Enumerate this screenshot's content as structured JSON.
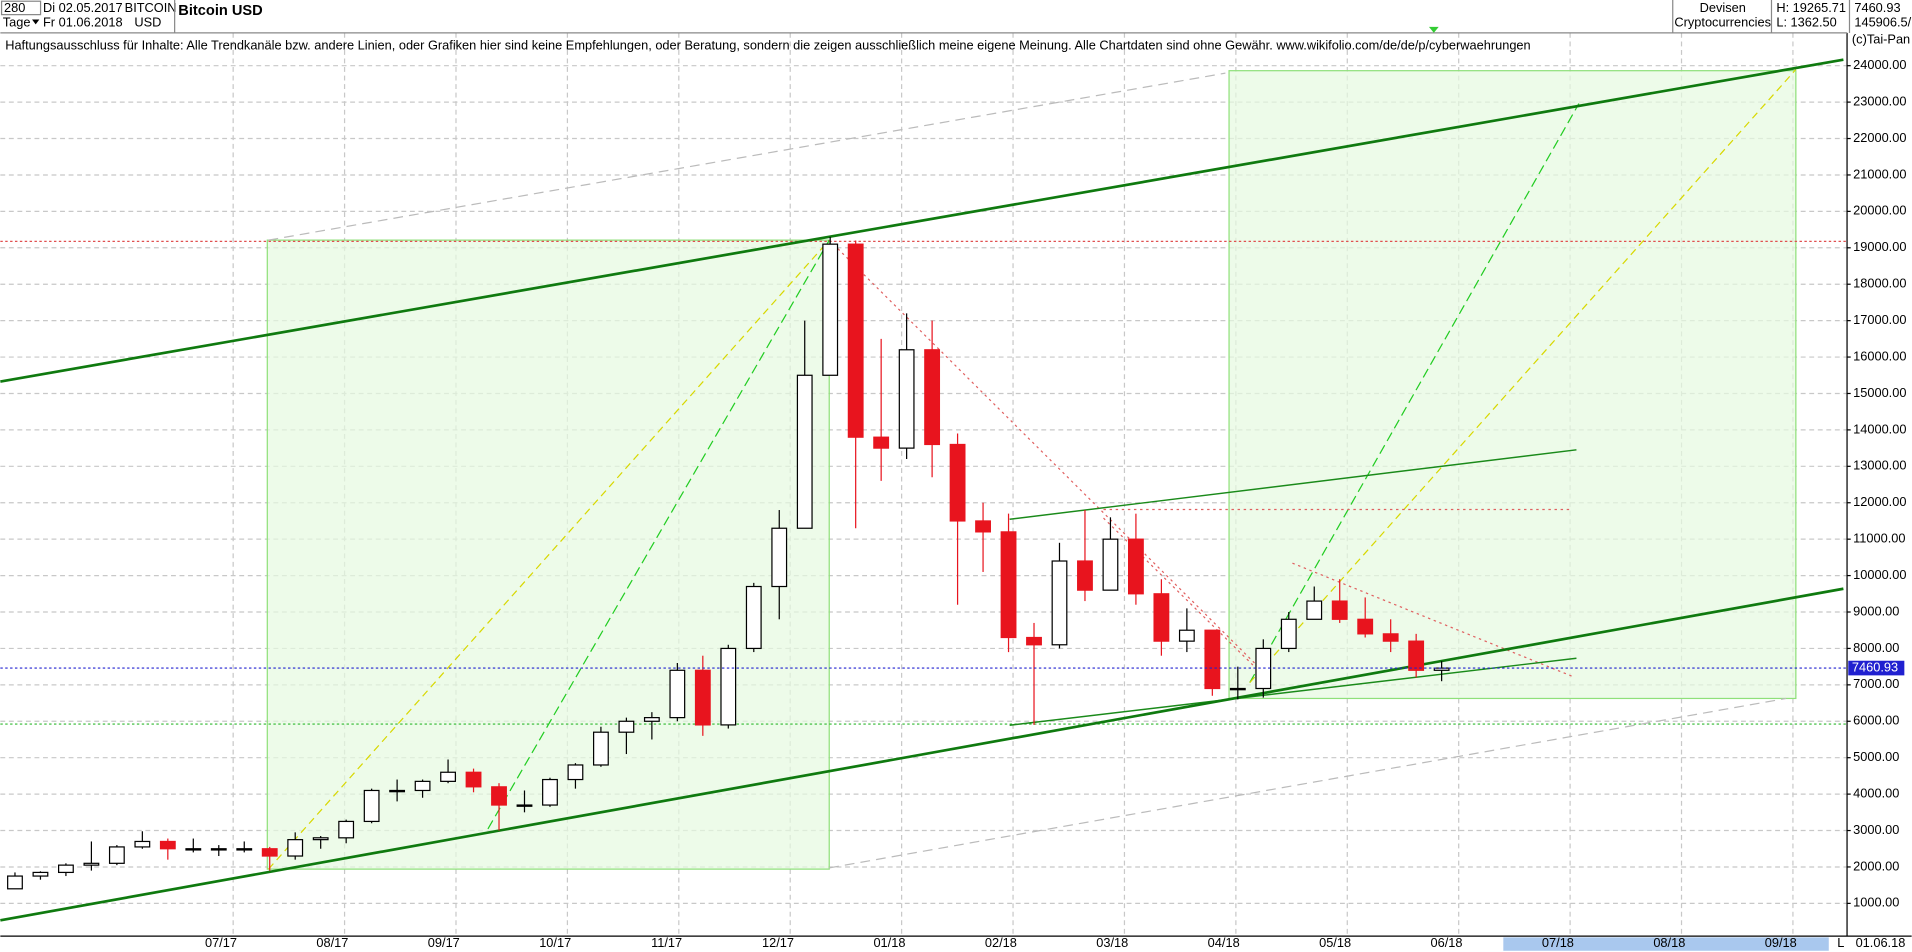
{
  "header": {
    "period": "280",
    "start": "Di 02.05.2017",
    "unit": "Tage",
    "end": "Fr 01.06.2018",
    "symbol": "BITCOIN",
    "currency": "USD",
    "name": "Bitcoin USD",
    "group": "Devisen",
    "subgroup": "Cryptocurrencies",
    "high": "H: 19265.71",
    "low": "L: 1362.50",
    "last": "7460.93",
    "volume": "145906.5/",
    "disclaimer": "Haftungsausschluss für Inhalte: Alle Trendkanäle bzw. andere Linien, oder Grafiken hier sind keine Empfehlungen, oder Beratung, sondern die zeigen ausschließlich meine eigene Meinung. Alle Chartdaten sind ohne Gewähr.  www.wikifolio.com/de/de/p/cyberwaehrungen",
    "copyright": "(c)Tai-Pan",
    "footer_date": "01.06.18",
    "footer_scale": "L"
  },
  "chart_data": {
    "type": "candlestick",
    "title": "Bitcoin USD",
    "ylim": [
      100,
      24900
    ],
    "yticks": [
      {
        "value": 1000,
        "label": "1000.00"
      },
      {
        "value": 2000,
        "label": "2000.00"
      },
      {
        "value": 3000,
        "label": "3000.00"
      },
      {
        "value": 4000,
        "label": "4000.00"
      },
      {
        "value": 5000,
        "label": "5000.00"
      },
      {
        "value": 6000,
        "label": "6000.00"
      },
      {
        "value": 7000,
        "label": "7000.00"
      },
      {
        "value": 8000,
        "label": "8000.00"
      },
      {
        "value": 9000,
        "label": "9000.00"
      },
      {
        "value": 10000,
        "label": "10000.00"
      },
      {
        "value": 11000,
        "label": "11000.00"
      },
      {
        "value": 12000,
        "label": "12000.00"
      },
      {
        "value": 13000,
        "label": "13000.00"
      },
      {
        "value": 14000,
        "label": "14000.00"
      },
      {
        "value": 15000,
        "label": "15000.00"
      },
      {
        "value": 16000,
        "label": "16000.00"
      },
      {
        "value": 17000,
        "label": "17000.00"
      },
      {
        "value": 18000,
        "label": "18000.00"
      },
      {
        "value": 19000,
        "label": "19000.00"
      },
      {
        "value": 20000,
        "label": "20000.00"
      },
      {
        "value": 21000,
        "label": "21000.00"
      },
      {
        "value": 22000,
        "label": "22000.00"
      },
      {
        "value": 23000,
        "label": "23000.00"
      },
      {
        "value": 24000,
        "label": "24000.00"
      }
    ],
    "xticks": [
      "07/17",
      "08/17",
      "09/17",
      "10/17",
      "11/17",
      "12/17",
      "01/18",
      "02/18",
      "03/18",
      "04/18",
      "05/18",
      "06/18",
      "07/18",
      "08/18",
      "09/18"
    ],
    "last_price": 7460.93,
    "up_color": "#ffffff",
    "down_color": "#e8141e",
    "outline_color": "#000000",
    "grid": true,
    "open": [
      1400,
      1750,
      1850,
      2050,
      2100,
      2550,
      2700,
      2500,
      2500,
      2500,
      2500,
      2300,
      2750,
      2800,
      3250,
      4100,
      4100,
      4350,
      4600,
      4200,
      3700,
      3700,
      4400,
      4800,
      5700,
      6000,
      6100,
      7400,
      5900,
      8000,
      9700,
      11300,
      15500,
      19100,
      13800,
      13500,
      16200,
      13600,
      11500,
      11200,
      8300,
      8100,
      10400,
      9600,
      11000,
      9500,
      8200,
      8500,
      6900,
      6900,
      8000,
      8800,
      9300,
      8800,
      8400,
      8200,
      7400
    ],
    "high": [
      1850,
      1880,
      2100,
      2700,
      2600,
      2980,
      2780,
      2780,
      2600,
      2700,
      2550,
      2950,
      2850,
      3300,
      4150,
      4400,
      4400,
      4950,
      4700,
      4300,
      4100,
      4450,
      4850,
      5850,
      6100,
      6250,
      7600,
      7800,
      8100,
      9800,
      11800,
      17000,
      19300,
      19200,
      16500,
      17200,
      17000,
      13900,
      12000,
      11700,
      8700,
      10900,
      11800,
      11600,
      11700,
      9900,
      9100,
      8500,
      7500,
      8250,
      9000,
      9700,
      9900,
      9400,
      8800,
      8400,
      7650
    ],
    "low": [
      1400,
      1650,
      1750,
      1900,
      2050,
      2500,
      2200,
      2400,
      2300,
      2400,
      1900,
      2200,
      2500,
      2650,
      3200,
      3800,
      3900,
      4300,
      4050,
      3000,
      3500,
      3650,
      4150,
      4750,
      5100,
      5500,
      6000,
      5600,
      5800,
      7900,
      8800,
      11300,
      15500,
      11300,
      12600,
      13200,
      12700,
      9200,
      10100,
      7900,
      5900,
      8000,
      9300,
      9600,
      9200,
      7800,
      7900,
      6700,
      6600,
      6650,
      7900,
      8800,
      8700,
      8300,
      7900,
      7200,
      7100
    ],
    "close": [
      1750,
      1850,
      2050,
      2100,
      2550,
      2700,
      2500,
      2500,
      2500,
      2500,
      2300,
      2750,
      2800,
      3250,
      4100,
      4100,
      4350,
      4600,
      4200,
      3700,
      3700,
      4400,
      4800,
      5700,
      6000,
      6100,
      7400,
      5900,
      8000,
      9700,
      11300,
      15500,
      19100,
      13800,
      13500,
      16200,
      13600,
      11500,
      11200,
      8300,
      8100,
      10400,
      9600,
      11000,
      9500,
      8200,
      8500,
      6900,
      6900,
      8000,
      8800,
      9300,
      8800,
      8400,
      8200,
      7400,
      7460
    ]
  }
}
